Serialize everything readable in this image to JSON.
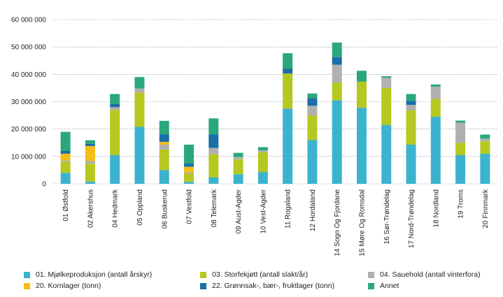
{
  "chart_data": {
    "type": "bar",
    "stacked": true,
    "categories": [
      "01 Østfold",
      "02 Akershus",
      "04 Hedmark",
      "05 Oppland",
      "06 Buskerud",
      "07 Vestfold",
      "08 Telemark",
      "09 Aust-Agder",
      "10 Vest-Agder",
      "11 Rogaland",
      "12 Hordaland",
      "14 Sogn Og Fjordane",
      "15 Møre Og Romsdal",
      "16 Sør-Trøndelag",
      "17 Nord-Trøndelag",
      "18 Nordland",
      "19 Troms",
      "20 Finnmark"
    ],
    "y_ticks": [
      {
        "value": 0,
        "label": "0"
      },
      {
        "value": 10000000,
        "label": "10 000 000"
      },
      {
        "value": 20000000,
        "label": "20 000 000"
      },
      {
        "value": 30000000,
        "label": "30 000 000"
      },
      {
        "value": 40000000,
        "label": "40 000 000"
      },
      {
        "value": 50000000,
        "label": "50 000 000"
      },
      {
        "value": 60000000,
        "label": "60 000 000"
      }
    ],
    "ylim": [
      0,
      60000000
    ],
    "grid": true,
    "legend_position": "bottom",
    "series": [
      {
        "name": "01. Mjølkeproduksjon (antall årskyr)",
        "color": "#3bb3cf",
        "values": [
          4000000,
          800000,
          10500000,
          20800000,
          5000000,
          700000,
          2300000,
          3500000,
          4300000,
          27500000,
          16000000,
          30500000,
          27800000,
          21500000,
          14300000,
          24500000,
          10500000,
          11000000
        ]
      },
      {
        "name": "03. Storfekjøtt (antall slakt/år)",
        "color": "#b5c81f",
        "values": [
          4000000,
          6500000,
          16500000,
          12500000,
          7500000,
          3000000,
          8500000,
          5500000,
          7200000,
          12800000,
          9000000,
          6500000,
          9500000,
          13500000,
          12500000,
          6500000,
          4500000,
          4500000
        ]
      },
      {
        "name": "04. Sauehold (antall vinterfora)",
        "color": "#b0b0b0",
        "values": [
          500000,
          1000000,
          1000000,
          1500000,
          1800000,
          500000,
          2300000,
          800000,
          700000,
          0,
          3500000,
          6500000,
          0,
          3800000,
          2000000,
          4500000,
          7300000,
          1000000
        ]
      },
      {
        "name": "20. Kornlager (tonn)",
        "color": "#f5be16",
        "values": [
          2500000,
          5500000,
          0,
          0,
          1000000,
          2000000,
          0,
          0,
          0,
          0,
          0,
          0,
          0,
          0,
          0,
          0,
          0,
          0
        ]
      },
      {
        "name": "22. Grønnsak-, bær-, fruktlager (tonn)",
        "color": "#1b6ea8",
        "values": [
          1000000,
          800000,
          1200000,
          0,
          2700000,
          1300000,
          5000000,
          0,
          0,
          1700000,
          2800000,
          2800000,
          0,
          0,
          1500000,
          0,
          0,
          0
        ]
      },
      {
        "name": "Annet",
        "color": "#2aa87a",
        "values": [
          7000000,
          1300000,
          3600000,
          4200000,
          5000000,
          6800000,
          5800000,
          1500000,
          1200000,
          5700000,
          1700000,
          5300000,
          4000000,
          500000,
          2500000,
          800000,
          800000,
          1500000
        ]
      }
    ]
  },
  "legend": {
    "order": [
      0,
      3,
      1,
      4,
      2,
      5
    ]
  }
}
